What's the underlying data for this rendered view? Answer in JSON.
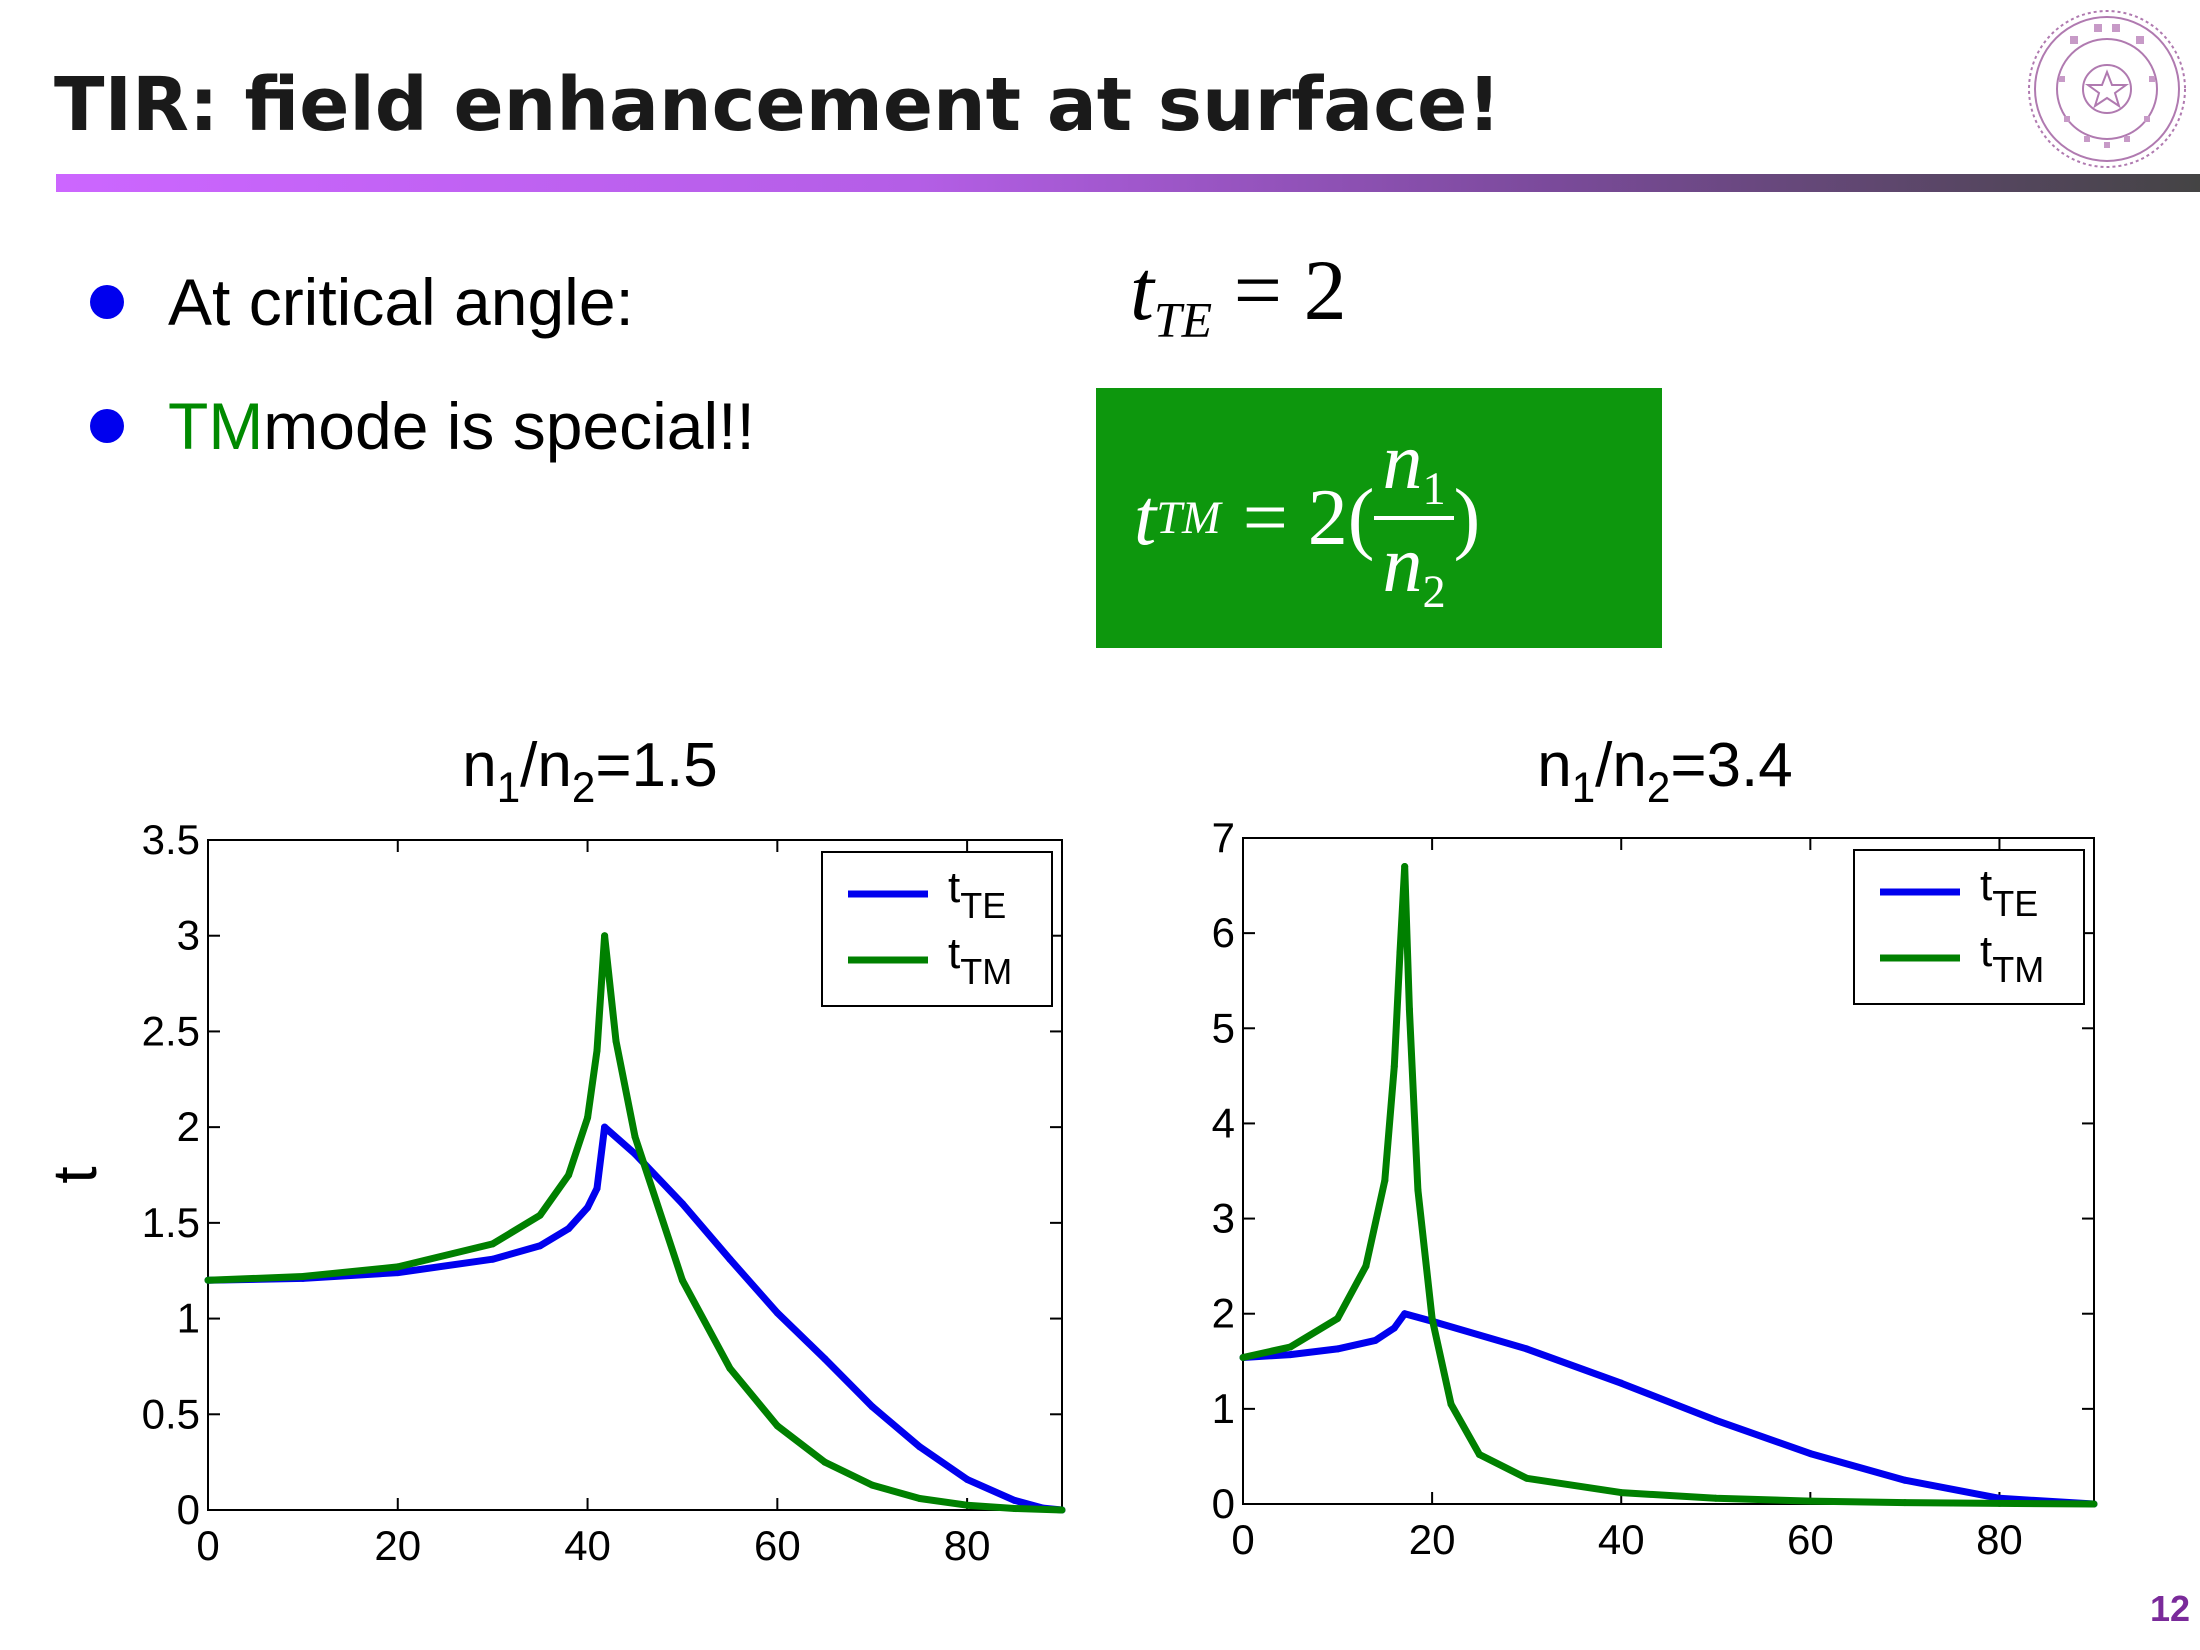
{
  "slide": {
    "title": "TIR: field enhancement at surface!",
    "page_number": "12",
    "bullets": [
      {
        "text": "At critical angle:"
      },
      {
        "highlight": "TM",
        "text": " mode is special!!"
      }
    ],
    "eq_te": {
      "t": "t",
      "sub": "TE",
      "rhs": "= 2"
    },
    "eq_tm": {
      "t": "t",
      "sub": "TM",
      "rhs": "= 2(",
      "num": "n",
      "num_sub": "1",
      "den": "n",
      "den_sub": "2",
      "close": ")"
    },
    "colors": {
      "accent_green": "#0d970d",
      "bullet_blue": "#0000ee",
      "series_te": "#0000ee",
      "series_tm": "#008000",
      "page_number": "#7a2a9a"
    }
  },
  "chart_data": [
    {
      "type": "line",
      "title_main": "n",
      "title_sub1": "1",
      "title_mid": "/n",
      "title_sub2": "2",
      "title_tail": "=1.5",
      "ylabel": "t",
      "xlim": [
        0,
        90
      ],
      "ylim": [
        0,
        3.5
      ],
      "xticks": [
        0,
        20,
        40,
        60,
        80
      ],
      "yticks": [
        0,
        0.5,
        1,
        1.5,
        2,
        2.5,
        3,
        3.5
      ],
      "legend_position": "top-right",
      "series": [
        {
          "name": "t",
          "name_sub": "TE",
          "color": "#0000ee",
          "x": [
            0,
            10,
            20,
            30,
            35,
            38,
            40,
            41,
            41.8,
            45,
            50,
            55,
            60,
            65,
            70,
            75,
            80,
            85,
            88,
            90
          ],
          "y": [
            1.2,
            1.21,
            1.24,
            1.31,
            1.38,
            1.47,
            1.58,
            1.68,
            2.0,
            1.86,
            1.6,
            1.31,
            1.03,
            0.79,
            0.54,
            0.33,
            0.16,
            0.05,
            0.01,
            0
          ]
        },
        {
          "name": "t",
          "name_sub": "TM",
          "color": "#008000",
          "x": [
            0,
            10,
            20,
            30,
            35,
            38,
            40,
            41,
            41.8,
            43,
            45,
            50,
            55,
            60,
            65,
            70,
            75,
            80,
            85,
            90
          ],
          "y": [
            1.2,
            1.22,
            1.27,
            1.39,
            1.54,
            1.75,
            2.05,
            2.4,
            3.0,
            2.45,
            1.95,
            1.2,
            0.74,
            0.44,
            0.25,
            0.13,
            0.06,
            0.025,
            0.008,
            0
          ]
        }
      ]
    },
    {
      "type": "line",
      "title_main": "n",
      "title_sub1": "1",
      "title_mid": "/n",
      "title_sub2": "2",
      "title_tail": "=3.4",
      "ylabel": "",
      "xlim": [
        0,
        90
      ],
      "ylim": [
        0,
        7
      ],
      "xticks": [
        0,
        20,
        40,
        60,
        80
      ],
      "yticks": [
        0,
        1,
        2,
        3,
        4,
        5,
        6,
        7
      ],
      "legend_position": "top-right",
      "series": [
        {
          "name": "t",
          "name_sub": "TE",
          "color": "#0000ee",
          "x": [
            0,
            5,
            10,
            14,
            16,
            17.1,
            20,
            30,
            40,
            50,
            60,
            70,
            80,
            90
          ],
          "y": [
            1.54,
            1.57,
            1.63,
            1.72,
            1.85,
            2.0,
            1.92,
            1.63,
            1.27,
            0.88,
            0.53,
            0.25,
            0.06,
            0
          ]
        },
        {
          "name": "t",
          "name_sub": "TM",
          "color": "#008000",
          "x": [
            0,
            5,
            10,
            13,
            15,
            16,
            16.6,
            17.1,
            17.6,
            18.5,
            20,
            22,
            25,
            30,
            40,
            50,
            60,
            70,
            80,
            90
          ],
          "y": [
            1.54,
            1.65,
            1.95,
            2.5,
            3.4,
            4.6,
            5.8,
            6.7,
            5.2,
            3.3,
            1.95,
            1.05,
            0.52,
            0.27,
            0.12,
            0.06,
            0.03,
            0.015,
            0.006,
            0
          ]
        }
      ]
    }
  ]
}
